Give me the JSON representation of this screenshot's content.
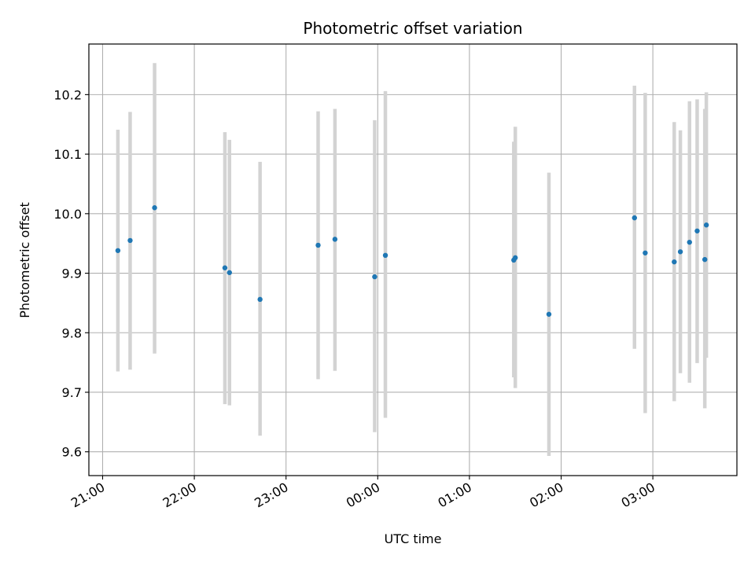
{
  "chart_data": {
    "type": "scatter",
    "title": "Photometric offset variation",
    "xlabel": "UTC time",
    "ylabel": "Photometric offset",
    "x_tick_labels": [
      "21:00",
      "22:00",
      "23:00",
      "00:00",
      "01:00",
      "02:00",
      "03:00"
    ],
    "y_tick_labels": [
      "9.6",
      "9.7",
      "9.8",
      "9.9",
      "10.0",
      "10.1",
      "10.2"
    ],
    "y_ticks": [
      9.6,
      9.7,
      9.8,
      9.9,
      10.0,
      10.1,
      10.2
    ],
    "xlim": [
      "20:51",
      "03:55"
    ],
    "ylim": [
      9.56,
      10.285
    ],
    "grid": true,
    "colors": {
      "point": "#1f77b4",
      "errorbar": "#d3d3d3",
      "grid": "#b0b0b0"
    },
    "series": [
      {
        "x": [
          "21:10",
          "21:18",
          "21:34",
          "22:20",
          "22:23",
          "22:43",
          "23:21",
          "23:32",
          "23:58",
          "00:05",
          "01:29",
          "01:30",
          "01:52",
          "02:48",
          "02:55",
          "03:14",
          "03:18",
          "03:24",
          "03:29",
          "03:34",
          "03:35"
        ],
        "y": [
          9.938,
          9.955,
          10.01,
          9.909,
          9.901,
          9.856,
          9.947,
          9.957,
          9.894,
          9.93,
          9.922,
          9.926,
          9.831,
          9.993,
          9.934,
          9.919,
          9.936,
          9.952,
          9.971,
          9.923,
          9.981
        ],
        "err_low": [
          9.735,
          9.738,
          9.765,
          9.68,
          9.678,
          9.627,
          9.722,
          9.736,
          9.633,
          9.657,
          9.725,
          9.707,
          9.593,
          9.773,
          9.665,
          9.685,
          9.732,
          9.716,
          9.749,
          9.673,
          9.758
        ],
        "err_high": [
          10.141,
          10.171,
          10.253,
          10.137,
          10.124,
          10.087,
          10.172,
          10.176,
          10.157,
          10.206,
          10.121,
          10.146,
          10.069,
          10.215,
          10.203,
          10.154,
          10.14,
          10.189,
          10.192,
          10.176,
          10.204
        ]
      }
    ]
  }
}
